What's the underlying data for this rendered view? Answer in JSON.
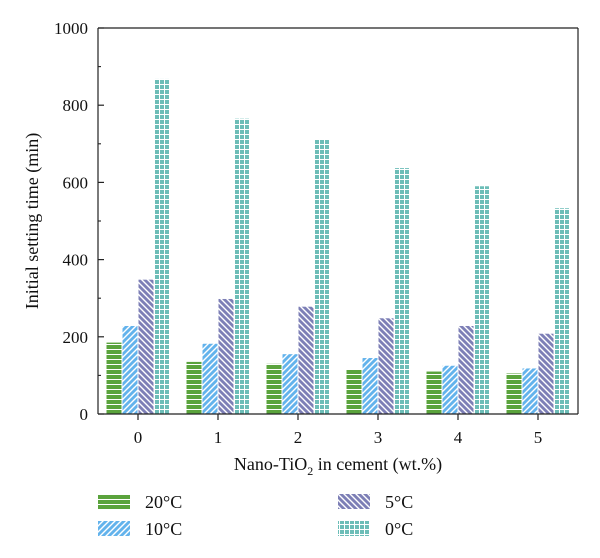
{
  "chart_data": {
    "type": "bar",
    "categories": [
      "0",
      "1",
      "2",
      "3",
      "4",
      "5"
    ],
    "series": [
      {
        "name": "20°C",
        "values": [
          185,
          135,
          130,
          115,
          110,
          105
        ],
        "color": "#5aa33c",
        "pattern": "horizontal-lines"
      },
      {
        "name": "10°C",
        "values": [
          228,
          182,
          155,
          145,
          125,
          118
        ],
        "color": "#63b3ec",
        "pattern": "forward-diagonal"
      },
      {
        "name": "5°C",
        "values": [
          348,
          298,
          278,
          248,
          228,
          208
        ],
        "color": "#7d7fb6",
        "pattern": "backward-diagonal"
      },
      {
        "name": "0°C",
        "values": [
          868,
          765,
          712,
          637,
          590,
          533
        ],
        "color": "#6cbdb7",
        "pattern": "grid"
      }
    ],
    "yticks": [
      "0",
      "200",
      "400",
      "600",
      "800",
      "1000"
    ],
    "ylabel": "Initial setting time (min)",
    "xlabel": {
      "main": "Nano-TiO",
      "sub": "2",
      "rest": " in cement (wt.%)"
    },
    "ylim": [
      0,
      1000
    ],
    "grid": false,
    "legend_position": "bottom"
  }
}
